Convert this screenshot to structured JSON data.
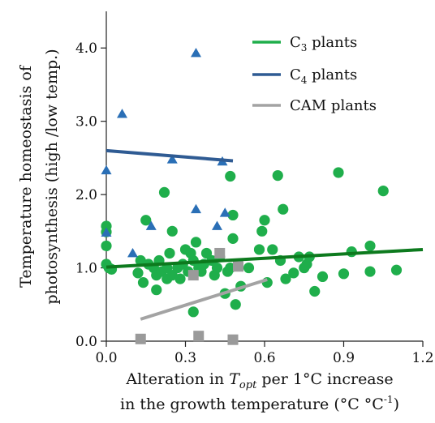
{
  "chart_data": {
    "type": "scatter",
    "xlabel_parts": [
      "Alteration in ",
      "T",
      "opt",
      " per 1°C increase"
    ],
    "xlabel_line2_parts": [
      "in the growth temperature  (°C °C",
      "-1",
      ")"
    ],
    "ylabel_line1": "Temperature homeostasis of",
    "ylabel_line2": "photosynthesis (high /low temp.)",
    "xlim": [
      0.0,
      1.2
    ],
    "ylim": [
      0.0,
      4.5
    ],
    "x_ticks": [
      0.0,
      0.3,
      0.6,
      0.9,
      1.2
    ],
    "x_tick_labels": [
      "0.0",
      "0.3",
      "0.6",
      "0.9",
      "1.2"
    ],
    "y_ticks": [
      0.0,
      1.0,
      2.0,
      3.0,
      4.0
    ],
    "y_tick_labels": [
      "0.0",
      "1.0",
      "2.0",
      "3.0",
      "4.0"
    ],
    "grid": false,
    "legend_position": "top-right",
    "series": [
      {
        "name": "C3 plants",
        "legend_main": "C",
        "legend_sub": "3",
        "legend_tail": " plants",
        "marker": "circle",
        "color": "#1fae4b",
        "line_color": "#0d7a1e",
        "fit": [
          [
            0.0,
            1.01
          ],
          [
            1.2,
            1.25
          ]
        ],
        "points": [
          [
            0.0,
            1.57
          ],
          [
            0.0,
            1.49
          ],
          [
            0.0,
            1.3
          ],
          [
            0.0,
            1.05
          ],
          [
            0.01,
            1.0
          ],
          [
            0.02,
            0.98
          ],
          [
            0.12,
            0.93
          ],
          [
            0.13,
            1.1
          ],
          [
            0.14,
            0.8
          ],
          [
            0.15,
            1.65
          ],
          [
            0.16,
            1.05
          ],
          [
            0.18,
            1.0
          ],
          [
            0.19,
            0.9
          ],
          [
            0.19,
            0.7
          ],
          [
            0.2,
            1.1
          ],
          [
            0.21,
            0.95
          ],
          [
            0.22,
            2.03
          ],
          [
            0.23,
            1.0
          ],
          [
            0.23,
            0.85
          ],
          [
            0.24,
            1.2
          ],
          [
            0.25,
            0.9
          ],
          [
            0.25,
            1.5
          ],
          [
            0.27,
            1.0
          ],
          [
            0.28,
            0.85
          ],
          [
            0.29,
            1.05
          ],
          [
            0.3,
            1.25
          ],
          [
            0.31,
            0.95
          ],
          [
            0.32,
            1.2
          ],
          [
            0.33,
            1.1
          ],
          [
            0.33,
            0.4
          ],
          [
            0.34,
            1.35
          ],
          [
            0.35,
            1.0
          ],
          [
            0.36,
            0.95
          ],
          [
            0.37,
            1.05
          ],
          [
            0.38,
            1.2
          ],
          [
            0.4,
            1.1
          ],
          [
            0.41,
            0.9
          ],
          [
            0.42,
            1.0
          ],
          [
            0.43,
            1.15
          ],
          [
            0.45,
            0.65
          ],
          [
            0.46,
            0.95
          ],
          [
            0.47,
            1.0
          ],
          [
            0.47,
            2.25
          ],
          [
            0.48,
            1.4
          ],
          [
            0.48,
            1.72
          ],
          [
            0.49,
            0.5
          ],
          [
            0.5,
            1.05
          ],
          [
            0.51,
            0.75
          ],
          [
            0.54,
            1.0
          ],
          [
            0.58,
            1.25
          ],
          [
            0.59,
            1.5
          ],
          [
            0.6,
            1.65
          ],
          [
            0.61,
            0.8
          ],
          [
            0.63,
            1.25
          ],
          [
            0.65,
            2.26
          ],
          [
            0.66,
            1.1
          ],
          [
            0.67,
            1.8
          ],
          [
            0.68,
            0.85
          ],
          [
            0.71,
            0.93
          ],
          [
            0.73,
            1.15
          ],
          [
            0.75,
            1.0
          ],
          [
            0.76,
            1.05
          ],
          [
            0.77,
            1.15
          ],
          [
            0.79,
            0.68
          ],
          [
            0.82,
            0.88
          ],
          [
            0.88,
            2.3
          ],
          [
            0.9,
            0.92
          ],
          [
            0.93,
            1.22
          ],
          [
            1.0,
            1.3
          ],
          [
            1.0,
            0.95
          ],
          [
            1.05,
            2.05
          ],
          [
            1.1,
            0.97
          ]
        ]
      },
      {
        "name": "C4 plants",
        "legend_main": "C",
        "legend_sub": "4",
        "legend_tail": " plants",
        "marker": "triangle",
        "color": "#2a6fb6",
        "line_color": "#2f5b93",
        "fit": [
          [
            0.0,
            2.6
          ],
          [
            0.48,
            2.46
          ]
        ],
        "points": [
          [
            0.0,
            2.33
          ],
          [
            0.0,
            1.48
          ],
          [
            0.06,
            3.1
          ],
          [
            0.1,
            1.2
          ],
          [
            0.17,
            1.57
          ],
          [
            0.25,
            2.48
          ],
          [
            0.34,
            3.93
          ],
          [
            0.34,
            1.8
          ],
          [
            0.42,
            1.57
          ],
          [
            0.44,
            2.45
          ],
          [
            0.45,
            1.75
          ]
        ]
      },
      {
        "name": "CAM plants",
        "legend_main": "CAM plants",
        "legend_sub": "",
        "legend_tail": "",
        "marker": "square",
        "color": "#9a9a9a",
        "line_color": "#a3a3a3",
        "fit": [
          [
            0.13,
            0.3
          ],
          [
            0.61,
            0.84
          ]
        ],
        "points": [
          [
            0.13,
            0.03
          ],
          [
            0.33,
            0.9
          ],
          [
            0.35,
            0.07
          ],
          [
            0.43,
            1.2
          ],
          [
            0.48,
            0.02
          ],
          [
            0.5,
            1.02
          ]
        ]
      }
    ]
  }
}
